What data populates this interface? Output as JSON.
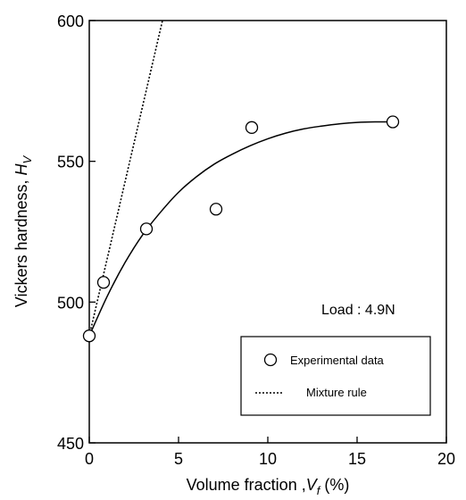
{
  "chart_data": {
    "type": "scatter",
    "xlabel": {
      "main": "Volume fraction ,",
      "symbol": "V",
      "sub": "f",
      "unit": " (%)"
    },
    "ylabel": {
      "main": "Vickers hardness, ",
      "symbol": "H",
      "sub": "V"
    },
    "xlim": [
      0,
      20
    ],
    "ylim": [
      450,
      600
    ],
    "x_ticks": [
      0,
      5,
      10,
      15,
      20
    ],
    "y_ticks": [
      450,
      500,
      550,
      600
    ],
    "annotation": "Load : 4.9N",
    "series": [
      {
        "name": "Experimental data",
        "kind": "points",
        "marker": "open-circle",
        "points": [
          [
            0,
            488
          ],
          [
            0.8,
            507
          ],
          [
            3.2,
            526
          ],
          [
            7.1,
            533
          ],
          [
            9.1,
            562
          ],
          [
            17.0,
            564
          ]
        ]
      },
      {
        "name": "Mixture rule",
        "kind": "dotted-line",
        "points": [
          [
            0,
            488
          ],
          [
            4.1,
            600
          ]
        ]
      },
      {
        "kind": "fit-curve",
        "points": [
          [
            0,
            488
          ],
          [
            1,
            502
          ],
          [
            2,
            514
          ],
          [
            3,
            524
          ],
          [
            4,
            532
          ],
          [
            5,
            539
          ],
          [
            6,
            544.5
          ],
          [
            7,
            549
          ],
          [
            8,
            552.5
          ],
          [
            9,
            555.5
          ],
          [
            10,
            558
          ],
          [
            11,
            560
          ],
          [
            12,
            561.5
          ],
          [
            13,
            562.5
          ],
          [
            14,
            563.3
          ],
          [
            15,
            563.8
          ],
          [
            16,
            564
          ],
          [
            17,
            564
          ]
        ]
      }
    ]
  }
}
